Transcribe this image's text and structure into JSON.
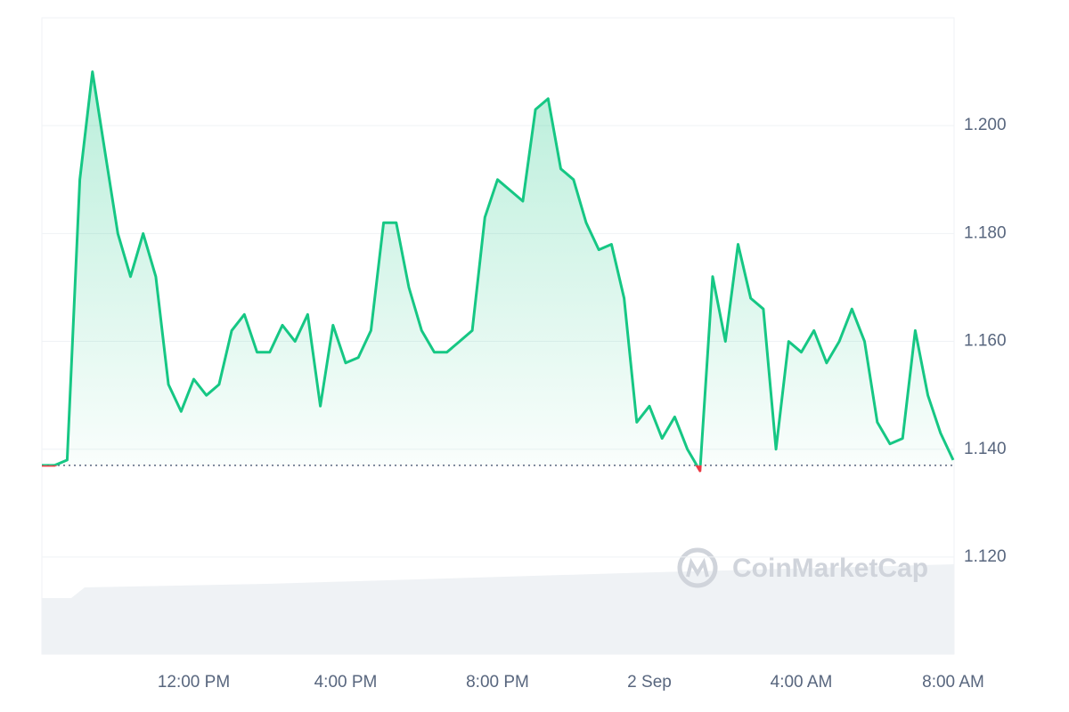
{
  "chart_data": {
    "type": "line",
    "watermark": "CoinMarketCap",
    "categories": [
      null,
      null,
      null,
      null,
      null,
      null,
      null,
      null,
      null,
      null,
      null,
      null,
      "12:00 PM",
      null,
      null,
      null,
      null,
      null,
      null,
      null,
      null,
      null,
      null,
      null,
      "4:00 PM",
      null,
      null,
      null,
      null,
      null,
      null,
      null,
      null,
      null,
      null,
      null,
      "8:00 PM",
      null,
      null,
      null,
      null,
      null,
      null,
      null,
      null,
      null,
      null,
      null,
      "2 Sep",
      null,
      null,
      null,
      null,
      null,
      null,
      null,
      null,
      null,
      null,
      null,
      "4:00 AM",
      null,
      null,
      null,
      null,
      null,
      null,
      null,
      null,
      null,
      null,
      null,
      "8:00 AM"
    ],
    "series": [
      {
        "color": "#16c784",
        "below_color": "#ea3943",
        "values": [
          1.137,
          1.137,
          1.138,
          1.19,
          1.21,
          1.195,
          1.18,
          1.172,
          1.18,
          1.172,
          1.152,
          1.147,
          1.153,
          1.15,
          1.152,
          1.162,
          1.165,
          1.158,
          1.158,
          1.163,
          1.16,
          1.165,
          1.148,
          1.163,
          1.156,
          1.157,
          1.162,
          1.182,
          1.182,
          1.17,
          1.162,
          1.158,
          1.158,
          1.16,
          1.162,
          1.183,
          1.19,
          1.188,
          1.186,
          1.203,
          1.205,
          1.192,
          1.19,
          1.182,
          1.177,
          1.178,
          1.168,
          1.145,
          1.148,
          1.142,
          1.146,
          1.14,
          1.136,
          1.172,
          1.16,
          1.178,
          1.168,
          1.166,
          1.14,
          1.16,
          1.158,
          1.162,
          1.156,
          1.16,
          1.166,
          1.16,
          1.145,
          1.141,
          1.142,
          1.162,
          1.15,
          1.143,
          1.138
        ]
      }
    ],
    "baseline": 1.137,
    "ylim": [
      1.102,
      1.22
    ],
    "yticks": [
      {
        "value": 1.12,
        "label": "1.120"
      },
      {
        "value": 1.14,
        "label": "1.140"
      },
      {
        "value": 1.16,
        "label": "1.160"
      },
      {
        "value": 1.18,
        "label": "1.180"
      },
      {
        "value": 1.2,
        "label": "1.200"
      }
    ],
    "grid": true
  }
}
